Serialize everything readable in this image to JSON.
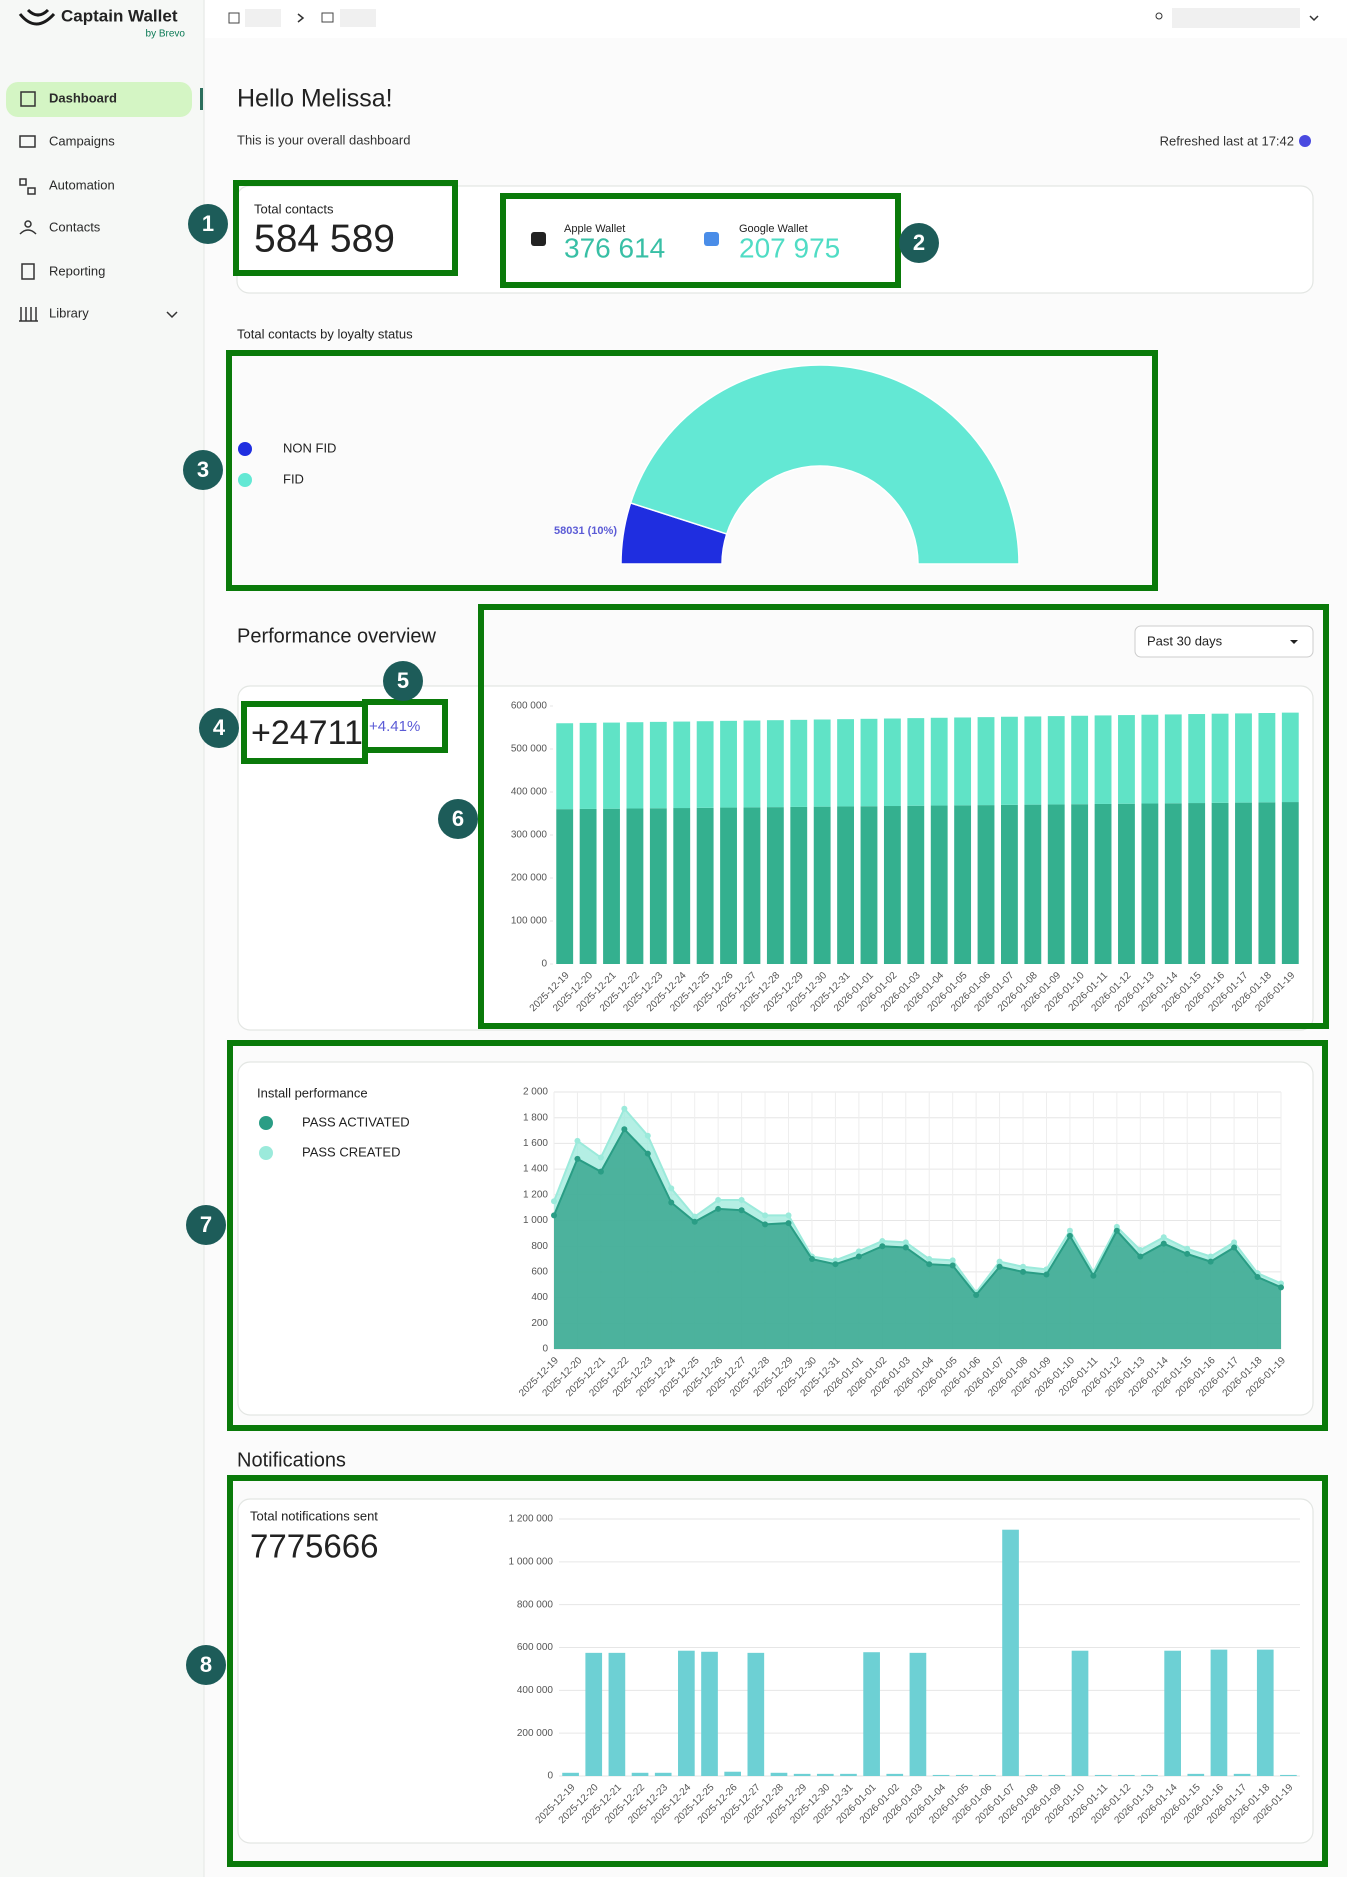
{
  "sidebar": {
    "brand": "Captain Wallet",
    "brand_sub": "by Brevo",
    "nav": [
      "Dashboard",
      "Campaigns",
      "Automation",
      "Contacts",
      "Reporting",
      "Library"
    ]
  },
  "header": {
    "greeting": "Hello Melissa!",
    "subtitle": "This is your overall dashboard",
    "refreshed": "Refreshed last at 17:42"
  },
  "contacts": {
    "label": "Total contacts",
    "total": "584 589",
    "wallets": [
      {
        "name": "Apple Wallet",
        "count": "376 614"
      },
      {
        "name": "Google Wallet",
        "count": "207 975"
      }
    ]
  },
  "performance": {
    "title": "Performance overview",
    "period": "Past 30 days",
    "growth": "+24711",
    "growth_rate": "+4.41%"
  },
  "notifications": {
    "title": "Notifications",
    "label": "Total notifications sent",
    "total": "7775666"
  },
  "annotations": [
    "1",
    "2",
    "3",
    "4",
    "5",
    "6",
    "7",
    "8"
  ],
  "chart_data": [
    {
      "type": "pie",
      "title": "Total contacts by loyalty status",
      "half": true,
      "categories": [
        "NON FID",
        "FID"
      ],
      "values": [
        58031,
        526558
      ],
      "value_labels": [
        "58031 (10%)",
        null
      ],
      "colors": [
        "#1f2ee0",
        "#63e8d4"
      ]
    },
    {
      "type": "bar",
      "stacked": true,
      "grid": false,
      "categories": [
        "2025-12-19",
        "2025-12-20",
        "2025-12-21",
        "2025-12-22",
        "2025-12-23",
        "2025-12-24",
        "2025-12-25",
        "2025-12-26",
        "2025-12-27",
        "2025-12-28",
        "2025-12-29",
        "2025-12-30",
        "2025-12-31",
        "2026-01-01",
        "2026-01-02",
        "2026-01-03",
        "2026-01-04",
        "2026-01-05",
        "2026-01-06",
        "2026-01-07",
        "2026-01-08",
        "2026-01-09",
        "2026-01-10",
        "2026-01-11",
        "2026-01-12",
        "2026-01-13",
        "2026-01-14",
        "2026-01-15",
        "2026-01-16",
        "2026-01-17",
        "2026-01-18",
        "2026-01-19"
      ],
      "series": [
        {
          "color": "#34b08f",
          "values": [
            360100,
            360600,
            361100,
            361700,
            362200,
            362700,
            363200,
            363800,
            364300,
            364800,
            365300,
            365900,
            366400,
            366900,
            367400,
            368000,
            368500,
            369000,
            369500,
            370100,
            370600,
            371100,
            371600,
            372200,
            372700,
            373200,
            373700,
            374300,
            374800,
            375300,
            375900,
            376614
          ]
        },
        {
          "color": "#60e3c6",
          "values": [
            199800,
            200100,
            200300,
            200600,
            200900,
            201100,
            201400,
            201700,
            201900,
            202200,
            202500,
            202700,
            203000,
            203300,
            203500,
            203800,
            204100,
            204300,
            204600,
            204900,
            205100,
            205400,
            205700,
            205900,
            206200,
            206500,
            206700,
            207000,
            207300,
            207500,
            207800,
            207975
          ]
        }
      ],
      "ylim": [
        0,
        600000
      ],
      "yticks": [
        0,
        {
          "value": 100000,
          "label": "100 000"
        },
        {
          "value": 200000,
          "label": "200 000"
        },
        {
          "value": 300000,
          "label": "300 000"
        },
        {
          "value": 400000,
          "label": "400 000"
        },
        {
          "value": 500000,
          "label": "500 000"
        },
        {
          "value": 600000,
          "label": "600 000"
        }
      ]
    },
    {
      "type": "line",
      "title": "Install performance",
      "fill": true,
      "grid": true,
      "categories": [
        "2025-12-19",
        "2025-12-20",
        "2025-12-21",
        "2025-12-22",
        "2025-12-23",
        "2025-12-24",
        "2025-12-25",
        "2025-12-26",
        "2025-12-27",
        "2025-12-28",
        "2025-12-29",
        "2025-12-30",
        "2025-12-31",
        "2026-01-01",
        "2026-01-02",
        "2026-01-03",
        "2026-01-04",
        "2026-01-05",
        "2026-01-06",
        "2026-01-07",
        "2026-01-08",
        "2026-01-09",
        "2026-01-10",
        "2026-01-11",
        "2026-01-12",
        "2026-01-13",
        "2026-01-14",
        "2026-01-15",
        "2026-01-16",
        "2026-01-17",
        "2026-01-18",
        "2026-01-19"
      ],
      "series": [
        {
          "name": "PASS ACTIVATED",
          "color": "#2a9d85",
          "values": [
            1040,
            1480,
            1380,
            1710,
            1520,
            1140,
            990,
            1090,
            1080,
            970,
            980,
            700,
            660,
            720,
            800,
            790,
            660,
            650,
            420,
            640,
            600,
            580,
            880,
            570,
            920,
            720,
            820,
            740,
            680,
            790,
            560,
            480
          ]
        },
        {
          "name": "PASS CREATED",
          "color": "#9beadb",
          "values": [
            1150,
            1620,
            1490,
            1870,
            1660,
            1250,
            1030,
            1160,
            1160,
            1040,
            1040,
            720,
            690,
            760,
            840,
            830,
            700,
            690,
            440,
            680,
            640,
            620,
            920,
            600,
            950,
            770,
            870,
            780,
            720,
            830,
            590,
            510
          ]
        }
      ],
      "ylim": [
        0,
        2000
      ],
      "yticks": [
        0,
        200,
        400,
        600,
        800,
        {
          "value": 1000,
          "label": "1 000"
        },
        {
          "value": 1200,
          "label": "1 200"
        },
        {
          "value": 1400,
          "label": "1 400"
        },
        {
          "value": 1600,
          "label": "1 600"
        },
        {
          "value": 1800,
          "label": "1 800"
        },
        {
          "value": 2000,
          "label": "2 000"
        }
      ]
    },
    {
      "type": "bar",
      "stacked": false,
      "grid": true,
      "color": "#6dd0d4",
      "categories": [
        "2025-12-19",
        "2025-12-20",
        "2025-12-21",
        "2025-12-22",
        "2025-12-23",
        "2025-12-24",
        "2025-12-25",
        "2025-12-26",
        "2025-12-27",
        "2025-12-28",
        "2025-12-29",
        "2025-12-30",
        "2025-12-31",
        "2026-01-01",
        "2026-01-02",
        "2026-01-03",
        "2026-01-04",
        "2026-01-05",
        "2026-01-06",
        "2026-01-07",
        "2026-01-08",
        "2026-01-09",
        "2026-01-10",
        "2026-01-11",
        "2026-01-12",
        "2026-01-13",
        "2026-01-14",
        "2026-01-15",
        "2026-01-16",
        "2026-01-17",
        "2026-01-18",
        "2026-01-19"
      ],
      "values": [
        15000,
        575000,
        575000,
        15000,
        15000,
        585000,
        580000,
        20000,
        575000,
        15000,
        10000,
        10000,
        10000,
        578000,
        10000,
        575000,
        5000,
        5000,
        5000,
        1150000,
        5000,
        5000,
        585000,
        5000,
        5000,
        5000,
        585000,
        10000,
        590000,
        10000,
        590000,
        5000
      ],
      "ylim": [
        0,
        1200000
      ],
      "yticks": [
        0,
        {
          "value": 200000,
          "label": "200 000"
        },
        {
          "value": 400000,
          "label": "400 000"
        },
        {
          "value": 600000,
          "label": "600 000"
        },
        {
          "value": 800000,
          "label": "800 000"
        },
        {
          "value": 1000000,
          "label": "1 000 000"
        },
        {
          "value": 1200000,
          "label": "1 200 000"
        }
      ]
    }
  ]
}
